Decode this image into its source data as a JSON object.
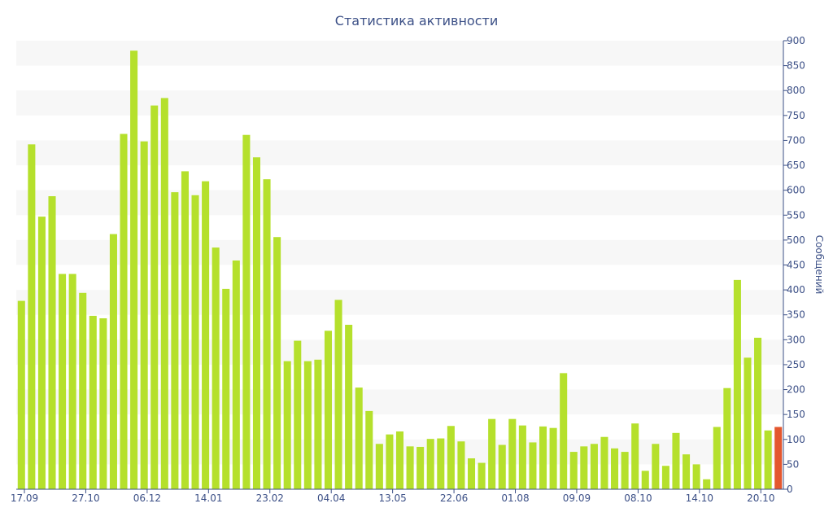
{
  "colors": {
    "bar": "#b5e02c",
    "highlight": "#e4572e",
    "axis": "#3b4f86",
    "band": "#f7f7f7"
  },
  "chart_data": {
    "type": "bar",
    "title": "Статистика активности",
    "xlabel": "",
    "ylabel": "Сообщений",
    "ylim": [
      0,
      900
    ],
    "y_ticks": [
      0,
      50,
      100,
      150,
      200,
      250,
      300,
      350,
      400,
      450,
      500,
      550,
      600,
      650,
      700,
      750,
      800,
      850,
      900
    ],
    "y_axis_side": "right",
    "grid": "alternating horizontal bands",
    "x_tick_labels": [
      {
        "index": 0,
        "label": "17.09"
      },
      {
        "index": 6,
        "label": "27.10"
      },
      {
        "index": 12,
        "label": "06.12"
      },
      {
        "index": 18,
        "label": "14.01"
      },
      {
        "index": 24,
        "label": "23.02"
      },
      {
        "index": 30,
        "label": "04.04"
      },
      {
        "index": 36,
        "label": "13.05"
      },
      {
        "index": 42,
        "label": "22.06"
      },
      {
        "index": 48,
        "label": "01.08"
      },
      {
        "index": 54,
        "label": "09.09"
      },
      {
        "index": 60,
        "label": "08.10"
      },
      {
        "index": 66,
        "label": "14.10"
      },
      {
        "index": 72,
        "label": "20.10"
      }
    ],
    "values": [
      378,
      692,
      547,
      588,
      432,
      432,
      394,
      348,
      343,
      512,
      713,
      880,
      698,
      770,
      785,
      596,
      638,
      590,
      618,
      485,
      402,
      459,
      711,
      666,
      622,
      506,
      257,
      298,
      257,
      260,
      318,
      380,
      330,
      204,
      157,
      91,
      110,
      116,
      86,
      85,
      101,
      102,
      127,
      96,
      62,
      53,
      141,
      89,
      141,
      128,
      94,
      126,
      123,
      233,
      75,
      86,
      91,
      105,
      82,
      75,
      132,
      37,
      91,
      47,
      113,
      70,
      50,
      20,
      125,
      203,
      420,
      264,
      304,
      118,
      125
    ],
    "highlight": {
      "index": 74,
      "color": "#e4572e",
      "value": 125
    }
  }
}
